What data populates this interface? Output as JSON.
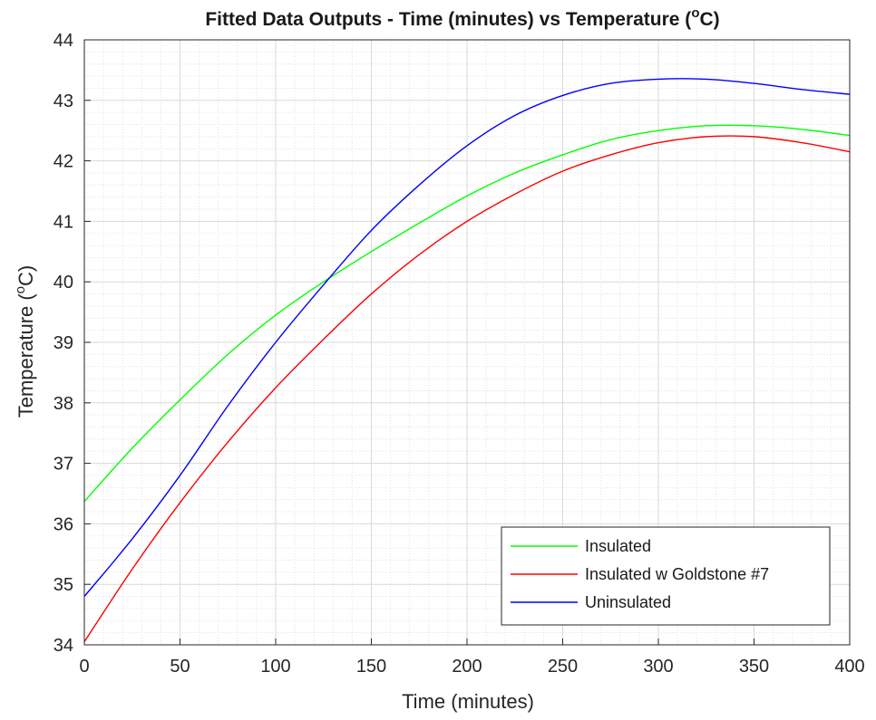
{
  "chart_data": {
    "type": "line",
    "title": "Fitted Data Outputs - Time (minutes) vs Temperature (",
    "title_sup": "o",
    "title_tail": "C)",
    "xlabel": "Time (minutes)",
    "ylabel": "Temperature (",
    "ylabel_sup": "o",
    "ylabel_tail": "C)",
    "xlim": [
      0,
      400
    ],
    "ylim": [
      34,
      44
    ],
    "xticks": [
      0,
      50,
      100,
      150,
      200,
      250,
      300,
      350,
      400
    ],
    "yticks": [
      34,
      35,
      36,
      37,
      38,
      39,
      40,
      41,
      42,
      43,
      44
    ],
    "grid": true,
    "minor_grid": true,
    "legend_position": "bottom-right",
    "series": [
      {
        "name": "Insulated",
        "color": "#00ff00",
        "x": [
          0,
          25,
          50,
          75,
          100,
          125,
          150,
          175,
          200,
          225,
          250,
          275,
          300,
          325,
          350,
          375,
          400
        ],
        "y": [
          36.37,
          37.25,
          38.05,
          38.8,
          39.45,
          40.0,
          40.5,
          40.97,
          41.42,
          41.8,
          42.1,
          42.35,
          42.5,
          42.58,
          42.58,
          42.52,
          42.42
        ]
      },
      {
        "name": "Insulated w Goldstone #7",
        "color": "#ff0000",
        "x": [
          0,
          25,
          50,
          75,
          100,
          125,
          150,
          175,
          200,
          225,
          250,
          275,
          300,
          325,
          350,
          375,
          400
        ],
        "y": [
          34.05,
          35.25,
          36.35,
          37.35,
          38.25,
          39.05,
          39.8,
          40.45,
          41.0,
          41.45,
          41.83,
          42.1,
          42.3,
          42.4,
          42.4,
          42.3,
          42.15
        ]
      },
      {
        "name": "Uninsulated",
        "color": "#0000ff",
        "x": [
          0,
          25,
          50,
          75,
          100,
          125,
          150,
          175,
          200,
          225,
          250,
          275,
          300,
          325,
          350,
          375,
          400
        ],
        "y": [
          34.8,
          35.75,
          36.8,
          37.95,
          39.0,
          39.95,
          40.85,
          41.6,
          42.25,
          42.75,
          43.08,
          43.28,
          43.35,
          43.35,
          43.28,
          43.18,
          43.1
        ]
      }
    ]
  }
}
